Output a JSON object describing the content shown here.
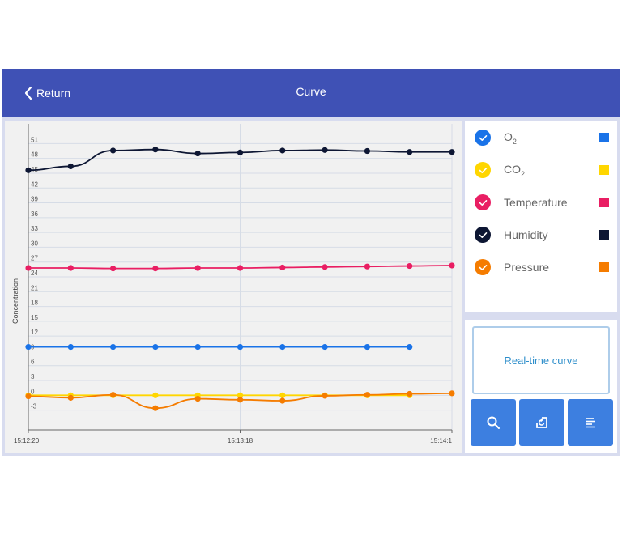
{
  "header": {
    "return_label": "Return",
    "title": "Curve"
  },
  "legend": [
    {
      "name": "O",
      "sub": "2",
      "color": "#1a73e8",
      "icon": "check-icon"
    },
    {
      "name": "CO",
      "sub": "2",
      "color": "#ffd600",
      "icon": "check-icon"
    },
    {
      "name": "Temperature",
      "sub": "",
      "color": "#e91e63",
      "icon": "check-icon"
    },
    {
      "name": "Humidity",
      "sub": "",
      "color": "#0d1633",
      "icon": "check-icon"
    },
    {
      "name": "Pressure",
      "sub": "",
      "color": "#f57c00",
      "icon": "check-icon"
    }
  ],
  "realtime_label": "Real-time curve",
  "toolbar": {
    "icons": [
      "search-icon",
      "restore-icon",
      "list-icon"
    ]
  },
  "chart_data": {
    "type": "line",
    "ylabel": "Concentration",
    "yticks": [
      -3,
      0,
      3,
      6,
      9,
      12,
      15,
      18,
      21,
      24,
      27,
      30,
      33,
      36,
      39,
      42,
      45,
      48,
      51
    ],
    "ylim": [
      -7,
      55
    ],
    "xticks": [
      "15:12:20",
      "15:13:18",
      "15:14:1"
    ],
    "grid": true,
    "series": [
      {
        "name": "O₂",
        "color": "#1a73e8",
        "values": [
          9.8,
          9.8,
          9.8,
          9.8,
          9.8,
          9.8,
          9.8,
          9.8,
          9.8,
          9.8
        ]
      },
      {
        "name": "CO₂",
        "color": "#ffd600",
        "values": [
          0,
          0,
          0,
          0,
          0,
          0,
          0,
          0,
          0,
          0
        ]
      },
      {
        "name": "Temperature",
        "color": "#e91e63",
        "values": [
          25.8,
          25.8,
          25.7,
          25.7,
          25.8,
          25.8,
          25.9,
          26.0,
          26.1,
          26.2,
          26.3
        ]
      },
      {
        "name": "Humidity",
        "color": "#0d1633",
        "values": [
          45.6,
          46.4,
          49.6,
          49.8,
          49.0,
          49.2,
          49.6,
          49.7,
          49.5,
          49.3,
          49.3
        ]
      },
      {
        "name": "Pressure",
        "color": "#f57c00",
        "values": [
          -0.2,
          -0.5,
          0.1,
          -2.6,
          -0.7,
          -0.9,
          -1.1,
          -0.1,
          0.1,
          0.3,
          0.4
        ]
      }
    ]
  }
}
